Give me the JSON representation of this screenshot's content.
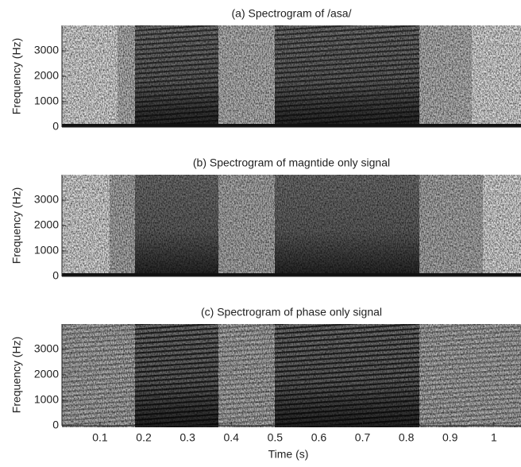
{
  "chart_data": [
    {
      "type": "spectrogram",
      "title": "(a) Spectrogram of /asa/",
      "ylabel": "Frequency (Hz)",
      "xlim": [
        0.013,
        1.062
      ],
      "ylim": [
        0,
        4000
      ],
      "yticks": [
        0,
        1000,
        2000,
        3000
      ]
    },
    {
      "type": "spectrogram",
      "title": "(b) Spectrogram of magntide only signal",
      "ylabel": "Frequency (Hz)",
      "xlim": [
        0.013,
        1.062
      ],
      "ylim": [
        0,
        4000
      ],
      "yticks": [
        0,
        1000,
        2000,
        3000
      ]
    },
    {
      "type": "spectrogram",
      "title": "(c) Spectrogram of phase only signal",
      "ylabel": "Frequency (Hz)",
      "xlabel": "Time (s)",
      "xlim": [
        0.013,
        1.062
      ],
      "ylim": [
        0,
        4000
      ],
      "yticks": [
        0,
        1000,
        2000,
        3000
      ],
      "xticks": [
        0.1,
        0.2,
        0.3,
        0.4,
        0.5,
        0.6,
        0.7,
        0.8,
        0.9,
        1
      ]
    }
  ]
}
